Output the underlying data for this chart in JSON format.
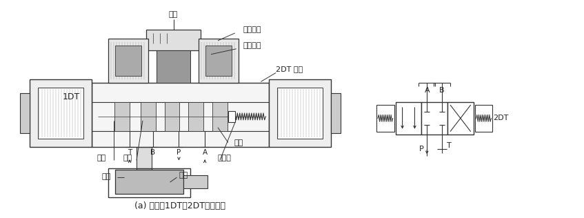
{
  "title": "(a) 电磁铁1DT与2DT均未通电",
  "bg_color": "#ffffff",
  "line_color": "#333333",
  "gray1": "#888888",
  "gray2": "#aaaaaa",
  "gray3": "#cccccc",
  "gray4": "#e8e8e8",
  "label_插座": "插座",
  "label_线圈组件": "线圈组件",
  "label_铁芯组件": "铁芯组件",
  "label_2DT锁母": "2DT 锁母",
  "label_1DT": "1DT",
  "label_推杆": "推杆",
  "label_阀芯": "阀芯",
  "label_弹簧": "弹簧",
  "label_弹簧座": "弹簧座",
  "label_活塞": "活塞",
  "label_油缸": "油缸",
  "label_T": "T",
  "label_B": "B",
  "label_P": "P",
  "label_A": "A",
  "label_A_sch": "A",
  "label_B_sch": "B",
  "label_P_sch": "P",
  "label_T_sch": "T",
  "label_2DT_sch": "2DT"
}
